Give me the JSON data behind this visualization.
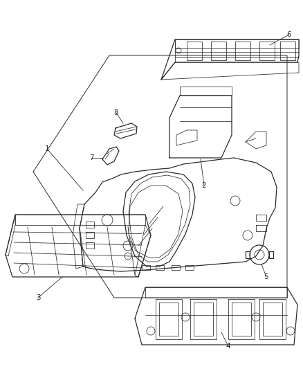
{
  "background_color": "#ffffff",
  "line_color": "#2a2a2a",
  "label_color": "#2a2a2a",
  "fig_width": 4.39,
  "fig_height": 5.33,
  "dpi": 100,
  "lw_main": 0.9,
  "lw_detail": 0.55,
  "fontsize": 7.5
}
